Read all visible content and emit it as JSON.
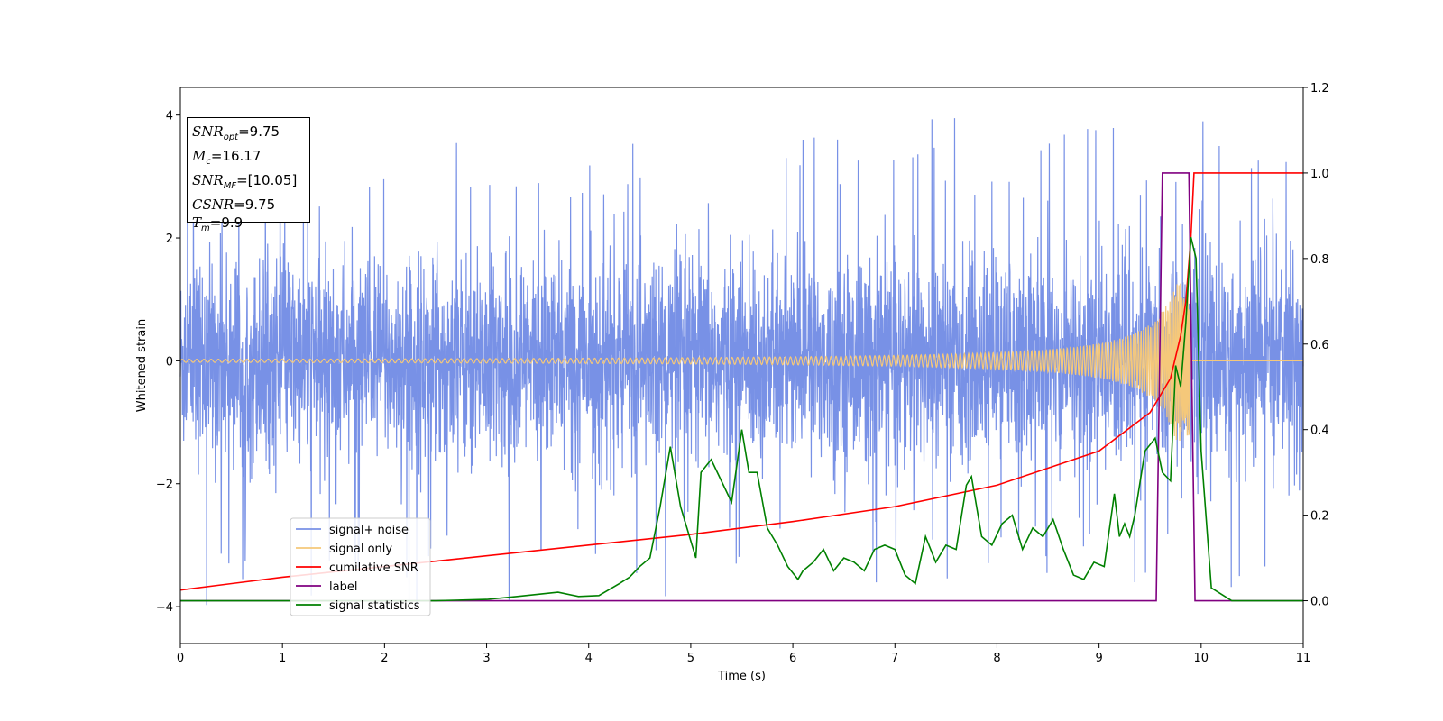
{
  "chart_data": {
    "type": "line",
    "xlabel": "Time (s)",
    "ylabel_left": "Whitened strain",
    "ylabel_right": "",
    "xlim": [
      0,
      11
    ],
    "ylim_left": [
      -4.6,
      4.45
    ],
    "ylim_right": [
      -0.1,
      1.2
    ],
    "xticks": [
      "0",
      "1",
      "2",
      "3",
      "4",
      "5",
      "6",
      "7",
      "8",
      "9",
      "10",
      "11"
    ],
    "yticks_left": [
      "−4",
      "−2",
      "0",
      "2",
      "4"
    ],
    "yticks_right": [
      "0.0",
      "0.2",
      "0.4",
      "0.6",
      "0.8",
      "1.0",
      "1.2"
    ],
    "grid": false,
    "legend_position": "lower-left",
    "series": [
      {
        "name": "signal+ noise",
        "axis": "left",
        "color": "#7891e6",
        "description": "dense noisy signal spanning roughly ±2.5 with spikes to ±4",
        "amplitude_typical": 1.8,
        "amplitude_max": 4.0
      },
      {
        "name": "signal only",
        "axis": "left",
        "color": "#f5c87a",
        "description": "chirp oscillation growing from ~0.02 amplitude to ~1.3 near merger at t=9.9",
        "chirp_end": 9.9
      },
      {
        "name": "cumilative SNR",
        "axis": "right",
        "color": "#ff0000",
        "x": [
          0,
          1,
          2,
          3,
          4,
          5,
          6,
          7,
          8,
          9,
          9.5,
          9.7,
          9.8,
          9.85,
          9.9,
          9.93,
          11
        ],
        "y": [
          0.025,
          0.055,
          0.08,
          0.105,
          0.13,
          0.155,
          0.185,
          0.22,
          0.27,
          0.35,
          0.44,
          0.52,
          0.62,
          0.7,
          0.85,
          1.0,
          1.0
        ]
      },
      {
        "name": "label",
        "axis": "right",
        "color": "#800080",
        "x": [
          0,
          9.56,
          9.62,
          9.88,
          9.94,
          11
        ],
        "y": [
          0.0,
          0.0,
          1.0,
          1.0,
          0.0,
          0.0
        ]
      },
      {
        "name": "signal statistics",
        "axis": "right",
        "color": "#008000",
        "x": [
          0,
          0.5,
          1,
          1.5,
          2,
          2.5,
          3,
          3.3,
          3.5,
          3.7,
          3.9,
          4.1,
          4.3,
          4.4,
          4.5,
          4.6,
          4.7,
          4.8,
          4.9,
          5.0,
          5.05,
          5.1,
          5.2,
          5.3,
          5.4,
          5.5,
          5.57,
          5.65,
          5.75,
          5.85,
          5.95,
          6.05,
          6.1,
          6.2,
          6.3,
          6.4,
          6.5,
          6.6,
          6.7,
          6.8,
          6.9,
          7.0,
          7.1,
          7.2,
          7.3,
          7.4,
          7.5,
          7.6,
          7.7,
          7.75,
          7.85,
          7.95,
          8.05,
          8.15,
          8.25,
          8.35,
          8.45,
          8.55,
          8.65,
          8.75,
          8.85,
          8.95,
          9.05,
          9.15,
          9.2,
          9.25,
          9.3,
          9.35,
          9.45,
          9.55,
          9.62,
          9.7,
          9.75,
          9.8,
          9.85,
          9.9,
          9.95,
          10.0,
          10.1,
          10.3,
          11
        ],
        "y": [
          0.0,
          0.0,
          0.0,
          0.0,
          0.0,
          0.0,
          0.003,
          0.01,
          0.015,
          0.02,
          0.01,
          0.012,
          0.04,
          0.055,
          0.08,
          0.1,
          0.22,
          0.36,
          0.22,
          0.14,
          0.1,
          0.3,
          0.33,
          0.28,
          0.23,
          0.4,
          0.3,
          0.3,
          0.17,
          0.13,
          0.08,
          0.05,
          0.07,
          0.09,
          0.12,
          0.07,
          0.1,
          0.09,
          0.07,
          0.12,
          0.13,
          0.12,
          0.06,
          0.04,
          0.15,
          0.09,
          0.13,
          0.12,
          0.27,
          0.29,
          0.15,
          0.13,
          0.18,
          0.2,
          0.12,
          0.17,
          0.15,
          0.19,
          0.12,
          0.06,
          0.05,
          0.09,
          0.08,
          0.25,
          0.15,
          0.18,
          0.15,
          0.2,
          0.35,
          0.38,
          0.3,
          0.28,
          0.55,
          0.5,
          0.65,
          0.85,
          0.8,
          0.35,
          0.03,
          0.0,
          0.0
        ]
      }
    ],
    "legend": [
      "signal+ noise",
      "signal only",
      "cumilative SNR",
      "label",
      "signal statistics"
    ]
  },
  "info_box": {
    "snr_opt": "=9.75",
    "mc": "=16.17",
    "snr_mf": "=[10.05]",
    "csnr": "=9.75",
    "tm": "=9.9",
    "snr_opt_label": "SNR",
    "snr_opt_sub": "opt",
    "mc_label": "M",
    "mc_sub": "c",
    "snr_mf_label": "SNR",
    "snr_mf_sub": "MF",
    "csnr_label": "CSNR",
    "tm_label": "T",
    "tm_sub": "m"
  }
}
